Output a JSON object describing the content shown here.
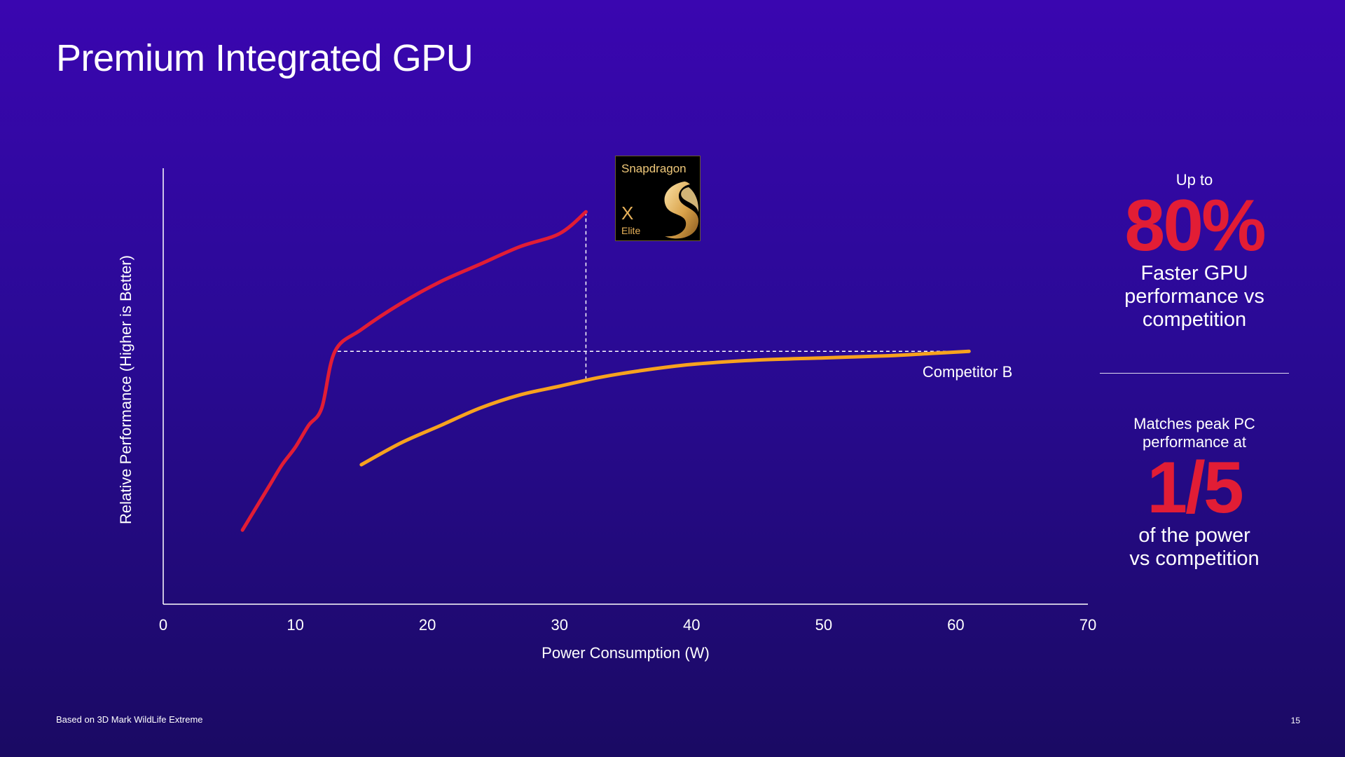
{
  "slide": {
    "title": "Premium Integrated GPU",
    "footnote": "Based on 3D Mark WildLife Extreme",
    "page_number": "15"
  },
  "logo": {
    "brand": "Snapdragon",
    "model": "X",
    "tier": "Elite",
    "icon": "snapdragon-flame-icon"
  },
  "stats": {
    "stat1_prefix": "Up to",
    "stat1_value": "80%",
    "stat1_desc_line1": "Faster GPU",
    "stat1_desc_line2": "performance vs",
    "stat1_desc_line3": "competition",
    "stat2_prefix_line1": "Matches peak PC",
    "stat2_prefix_line2": "performance at",
    "stat2_value": "1/5",
    "stat2_desc_line1": "of the power",
    "stat2_desc_line2": "vs competition"
  },
  "colors": {
    "snapdragon_series": "#e21d35",
    "competitor_series": "#f7a21e",
    "highlight_red": "#e21d35",
    "logo_gold": "#e8b25a"
  },
  "chart_data": {
    "type": "line",
    "title": "",
    "xlabel": "Power Consumption (W)",
    "ylabel": "Relative Performance (Higher is Better)",
    "xlim": [
      0,
      70
    ],
    "ylim": [
      0,
      100
    ],
    "x_ticks": [
      "0",
      "10",
      "20",
      "30",
      "40",
      "50",
      "60",
      "70"
    ],
    "y_ticks_shown": false,
    "grid": false,
    "series": [
      {
        "name": "",
        "color": "#e21d35",
        "points": [
          [
            6,
            17
          ],
          [
            7,
            22
          ],
          [
            8,
            27
          ],
          [
            9,
            32
          ],
          [
            10,
            36
          ],
          [
            11,
            41
          ],
          [
            12,
            45
          ],
          [
            13,
            58
          ],
          [
            15,
            63
          ],
          [
            18,
            69
          ],
          [
            21,
            74
          ],
          [
            24,
            78
          ],
          [
            27,
            82
          ],
          [
            30,
            85
          ],
          [
            32,
            90
          ]
        ]
      },
      {
        "name": "Competitor B",
        "color": "#f7a21e",
        "points": [
          [
            15,
            32
          ],
          [
            18,
            37
          ],
          [
            21,
            41
          ],
          [
            24,
            45
          ],
          [
            27,
            48
          ],
          [
            30,
            50
          ],
          [
            33,
            52
          ],
          [
            36,
            53.5
          ],
          [
            40,
            55
          ],
          [
            45,
            56
          ],
          [
            50,
            56.5
          ],
          [
            55,
            57
          ],
          [
            58,
            57.5
          ],
          [
            61,
            58
          ]
        ]
      }
    ],
    "reference_lines": [
      {
        "type": "horizontal",
        "y": 58,
        "x_from": 13.2,
        "x_to": 61
      },
      {
        "type": "vertical",
        "x": 32,
        "y_from": 51.5,
        "y_to": 90
      }
    ]
  }
}
